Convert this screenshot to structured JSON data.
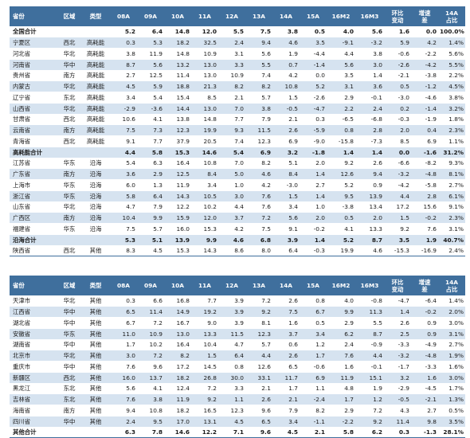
{
  "columns": [
    "省份",
    "区域",
    "类型",
    "08A",
    "09A",
    "10A",
    "11A",
    "12A",
    "13A",
    "14A",
    "15A",
    "16M2",
    "16M3",
    "环比\n变动",
    "增速\n差",
    "14A\n占比"
  ],
  "table_top": {
    "rows": [
      [
        "全国合计",
        "",
        "",
        "5.2",
        "6.4",
        "14.8",
        "12.0",
        "5.5",
        "7.5",
        "3.8",
        "0.5",
        "4.0",
        "5.6",
        "1.6",
        "0.0",
        "100.0%"
      ],
      [
        "宁夏区",
        "西北",
        "高耗能",
        "0.3",
        "5.3",
        "18.2",
        "32.5",
        "2.4",
        "9.4",
        "4.6",
        "3.5",
        "-9.1",
        "-3.2",
        "5.9",
        "4.2",
        "1.4%"
      ],
      [
        "河北省",
        "华北",
        "高耗能",
        "3.8",
        "11.9",
        "14.8",
        "10.9",
        "3.1",
        "5.6",
        "1.9",
        "-4.4",
        "4.4",
        "3.8",
        "-0.6",
        "-2.2",
        "5.6%"
      ],
      [
        "河南省",
        "华中",
        "高耗能",
        "8.7",
        "5.6",
        "13.2",
        "13.0",
        "3.3",
        "5.5",
        "0.7",
        "-1.4",
        "5.6",
        "3.0",
        "-2.6",
        "-4.2",
        "5.5%"
      ],
      [
        "贵州省",
        "南方",
        "高耗能",
        "2.7",
        "12.5",
        "11.4",
        "13.0",
        "10.9",
        "7.4",
        "4.2",
        "0.0",
        "3.5",
        "1.4",
        "-2.1",
        "-3.8",
        "2.2%"
      ],
      [
        "内蒙古",
        "华北",
        "高耗能",
        "4.5",
        "5.9",
        "18.8",
        "21.3",
        "8.2",
        "8.2",
        "10.8",
        "5.2",
        "3.1",
        "3.6",
        "0.5",
        "-1.2",
        "4.5%"
      ],
      [
        "辽宁省",
        "东北",
        "高耗能",
        "3.4",
        "5.4",
        "15.4",
        "8.5",
        "2.1",
        "5.7",
        "1.5",
        "-2.6",
        "2.9",
        "-0.1",
        "-3.0",
        "-4.6",
        "3.8%"
      ],
      [
        "山西省",
        "华北",
        "高耗能",
        "-2.9",
        "-3.6",
        "14.4",
        "13.0",
        "7.0",
        "3.8",
        "-0.5",
        "-4.7",
        "2.2",
        "2.4",
        "0.2",
        "-1.4",
        "3.2%"
      ],
      [
        "甘肃省",
        "西北",
        "高耗能",
        "10.6",
        "4.1",
        "13.8",
        "14.8",
        "7.7",
        "7.9",
        "2.1",
        "0.3",
        "-6.5",
        "-6.8",
        "-0.3",
        "-1.9",
        "1.8%"
      ],
      [
        "云南省",
        "南方",
        "高耗能",
        "7.5",
        "7.3",
        "12.3",
        "19.9",
        "9.3",
        "11.5",
        "2.6",
        "-5.9",
        "0.8",
        "2.8",
        "2.0",
        "0.4",
        "2.3%"
      ],
      [
        "青海省",
        "西北",
        "高耗能",
        "9.1",
        "7.7",
        "37.9",
        "20.5",
        "7.4",
        "12.3",
        "6.9",
        "-9.0",
        "-15.8",
        "-7.3",
        "8.5",
        "6.9",
        "1.1%"
      ],
      [
        "高耗能合计",
        "",
        "",
        "4.4",
        "5.8",
        "15.3",
        "14.6",
        "5.4",
        "6.9",
        "3.2",
        "-1.8",
        "1.4",
        "1.4",
        "0.0",
        "-1.6",
        "31.2%"
      ],
      [
        "江苏省",
        "华东",
        "沿海",
        "5.4",
        "6.3",
        "16.4",
        "10.8",
        "7.0",
        "8.2",
        "5.1",
        "2.0",
        "9.2",
        "2.6",
        "-6.6",
        "-8.2",
        "9.3%"
      ],
      [
        "广东省",
        "南方",
        "沿海",
        "3.6",
        "2.9",
        "12.5",
        "8.4",
        "5.0",
        "4.6",
        "8.4",
        "1.4",
        "12.6",
        "9.4",
        "-3.2",
        "-4.8",
        "8.1%"
      ],
      [
        "上海市",
        "华东",
        "沿海",
        "6.0",
        "1.3",
        "11.9",
        "3.4",
        "1.0",
        "4.2",
        "-3.0",
        "2.7",
        "5.2",
        "0.9",
        "-4.2",
        "-5.8",
        "2.7%"
      ],
      [
        "浙江省",
        "华东",
        "沿海",
        "5.8",
        "6.4",
        "14.3",
        "10.5",
        "3.0",
        "7.6",
        "1.5",
        "1.4",
        "9.5",
        "13.9",
        "4.4",
        "2.8",
        "6.1%"
      ],
      [
        "山东省",
        "华北",
        "沿海",
        "4.7",
        "7.9",
        "12.2",
        "10.2",
        "4.4",
        "7.6",
        "3.4",
        "1.0",
        "-3.8",
        "13.4",
        "17.2",
        "15.6",
        "9.1%"
      ],
      [
        "广西区",
        "南方",
        "沿海",
        "10.4",
        "9.9",
        "15.9",
        "12.0",
        "3.7",
        "7.2",
        "5.6",
        "2.0",
        "0.5",
        "2.0",
        "1.5",
        "-0.2",
        "2.3%"
      ],
      [
        "福建省",
        "华东",
        "沿海",
        "7.5",
        "5.7",
        "16.0",
        "15.3",
        "4.2",
        "7.5",
        "9.1",
        "-0.2",
        "4.1",
        "13.3",
        "9.2",
        "7.6",
        "3.1%"
      ],
      [
        "沿海合计",
        "",
        "",
        "5.3",
        "5.1",
        "13.9",
        "9.9",
        "4.6",
        "6.8",
        "3.9",
        "1.4",
        "5.2",
        "8.7",
        "3.5",
        "1.9",
        "40.7%"
      ],
      [
        "陕西省",
        "西北",
        "其他",
        "8.3",
        "4.5",
        "15.3",
        "14.3",
        "8.6",
        "8.0",
        "6.4",
        "-0.3",
        "19.9",
        "4.6",
        "-15.3",
        "-16.9",
        "2.4%"
      ]
    ]
  },
  "table_bottom": {
    "rows": [
      [
        "天津市",
        "华北",
        "其他",
        "0.3",
        "6.6",
        "16.8",
        "7.7",
        "3.9",
        "7.2",
        "2.6",
        "0.8",
        "4.0",
        "-0.8",
        "-4.7",
        "-6.4",
        "1.4%"
      ],
      [
        "江西省",
        "华中",
        "其他",
        "6.5",
        "11.4",
        "14.9",
        "19.2",
        "3.9",
        "9.2",
        "7.5",
        "6.7",
        "9.9",
        "11.3",
        "1.4",
        "-0.2",
        "2.0%"
      ],
      [
        "湖北省",
        "华中",
        "其他",
        "6.7",
        "7.2",
        "16.7",
        "9.0",
        "3.9",
        "8.1",
        "1.6",
        "0.5",
        "2.9",
        "5.5",
        "2.6",
        "0.9",
        "3.0%"
      ],
      [
        "安徽省",
        "华东",
        "其他",
        "11.0",
        "10.9",
        "13.0",
        "13.3",
        "11.5",
        "12.3",
        "3.7",
        "3.4",
        "6.2",
        "8.7",
        "2.5",
        "0.9",
        "3.1%"
      ],
      [
        "湖南省",
        "华中",
        "其他",
        "1.7",
        "10.2",
        "16.4",
        "10.4",
        "4.7",
        "5.7",
        "0.6",
        "1.2",
        "2.4",
        "-0.9",
        "-3.3",
        "-4.9",
        "2.7%"
      ],
      [
        "北京市",
        "华北",
        "其他",
        "3.0",
        "7.2",
        "8.2",
        "1.5",
        "6.4",
        "4.4",
        "2.6",
        "1.7",
        "7.6",
        "4.4",
        "-3.2",
        "-4.8",
        "1.9%"
      ],
      [
        "重庆市",
        "华中",
        "其他",
        "7.6",
        "9.6",
        "17.2",
        "14.5",
        "0.8",
        "12.6",
        "6.5",
        "-0.6",
        "1.6",
        "-0.1",
        "-1.7",
        "-3.3",
        "1.6%"
      ],
      [
        "新疆区",
        "西北",
        "其他",
        "16.0",
        "13.7",
        "18.2",
        "26.8",
        "30.0",
        "33.1",
        "11.7",
        "6.9",
        "11.9",
        "15.1",
        "3.2",
        "1.6",
        "3.0%"
      ],
      [
        "黑龙江",
        "东北",
        "其他",
        "5.6",
        "4.1",
        "12.4",
        "7.2",
        "3.3",
        "2.1",
        "1.7",
        "1.1",
        "4.8",
        "1.9",
        "-2.9",
        "-4.5",
        "1.7%"
      ],
      [
        "吉林省",
        "东北",
        "其他",
        "7.6",
        "3.8",
        "11.9",
        "9.2",
        "1.1",
        "2.6",
        "2.1",
        "-2.4",
        "1.7",
        "1.2",
        "-0.5",
        "-2.1",
        "1.3%"
      ],
      [
        "海南省",
        "南方",
        "其他",
        "9.4",
        "10.8",
        "18.2",
        "16.5",
        "12.3",
        "9.6",
        "7.9",
        "8.2",
        "2.9",
        "7.2",
        "4.3",
        "2.7",
        "0.5%"
      ],
      [
        "四川省",
        "华中",
        "其他",
        "2.4",
        "9.5",
        "17.0",
        "13.1",
        "4.5",
        "6.5",
        "3.4",
        "-1.1",
        "-2.2",
        "9.2",
        "11.4",
        "9.8",
        "3.5%"
      ],
      [
        "其他合计",
        "",
        "",
        "6.3",
        "7.8",
        "14.6",
        "12.2",
        "7.1",
        "9.6",
        "4.5",
        "2.1",
        "5.8",
        "6.2",
        "0.3",
        "-1.3",
        "28.1%"
      ]
    ]
  }
}
